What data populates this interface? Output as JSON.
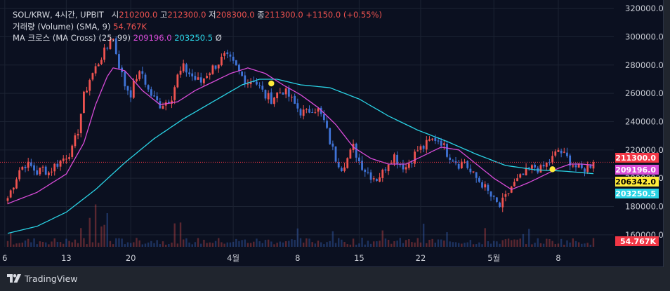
{
  "legend": {
    "symbol": "SOL/KRW, 4시간, UPBIT",
    "open_label": "시",
    "open": "210200.0",
    "high_label": "고",
    "high": "212300.0",
    "low_label": "저",
    "low": "208300.0",
    "close_label": "종",
    "close": "211300.0",
    "change": "+1150.0 (+0.55%)",
    "volume_label": "거래량 (Volume) (SMA, 9)",
    "volume_value": "54.767K",
    "ma_label": "MA 크로스 (MA Cross) (25, 99)",
    "ma_fast_value": "209196.0",
    "ma_slow_value": "203250.5",
    "ma_extra": "Ø"
  },
  "footer": {
    "brand": "TradingView",
    "logo_icon": "tradingview-logo-icon"
  },
  "colors": {
    "background": "#0b1020",
    "up": "#ef5350",
    "down": "#3f73d6",
    "ma_fast": "#d84bd8",
    "ma_slow": "#2ad4e6",
    "cross_marker": "#ffeb3b",
    "yellow_tag": "#ffeb3b"
  },
  "chart_data": {
    "type": "candlestick",
    "x_ticks": [
      "6",
      "13",
      "20",
      "4월",
      "8",
      "15",
      "22",
      "5월",
      "8"
    ],
    "y_ticks": [
      "160000.0",
      "180000.0",
      "200000.0",
      "220000.0",
      "240000.0",
      "260000.0",
      "280000.0",
      "300000.0",
      "320000.0"
    ],
    "ylim": [
      151500,
      326000
    ],
    "price_tags": [
      {
        "label": "211300.0",
        "value": 211300,
        "color": "#f23645"
      },
      {
        "label": "209196.0",
        "value": 209196,
        "color": "#d84bd8"
      },
      {
        "label": "206342.0",
        "value": 206342,
        "color": "#ffeb3b"
      },
      {
        "label": "203250.5",
        "value": 203250.5,
        "color": "#2ad4e6"
      },
      {
        "label": "54.767K",
        "value": 54.767,
        "color": "#f23645"
      }
    ],
    "last_price": 211300,
    "price_keypoints": [
      [
        0,
        186000
      ],
      [
        2,
        196000
      ],
      [
        4,
        206000
      ],
      [
        6,
        210000
      ],
      [
        8,
        208000
      ],
      [
        10,
        204000
      ],
      [
        12,
        207000
      ],
      [
        14,
        204000
      ],
      [
        16,
        209000
      ],
      [
        18,
        212000
      ],
      [
        20,
        216000
      ],
      [
        22,
        220000
      ],
      [
        24,
        234000
      ],
      [
        26,
        258000
      ],
      [
        28,
        270000
      ],
      [
        30,
        278000
      ],
      [
        32,
        286000
      ],
      [
        34,
        292000
      ],
      [
        35,
        300000
      ],
      [
        36,
        298000
      ],
      [
        38,
        280000
      ],
      [
        40,
        266000
      ],
      [
        42,
        260000
      ],
      [
        44,
        272000
      ],
      [
        46,
        274000
      ],
      [
        48,
        262000
      ],
      [
        50,
        256000
      ],
      [
        52,
        252000
      ],
      [
        54,
        254000
      ],
      [
        56,
        258000
      ],
      [
        58,
        272000
      ],
      [
        60,
        278000
      ],
      [
        62,
        274000
      ],
      [
        64,
        270000
      ],
      [
        66,
        268000
      ],
      [
        68,
        274000
      ],
      [
        70,
        278000
      ],
      [
        72,
        282000
      ],
      [
        74,
        286000
      ],
      [
        76,
        283000
      ],
      [
        78,
        278000
      ],
      [
        80,
        272000
      ],
      [
        82,
        268000
      ],
      [
        84,
        270000
      ],
      [
        86,
        264000
      ],
      [
        88,
        258000
      ],
      [
        90,
        256000
      ],
      [
        92,
        260000
      ],
      [
        94,
        262000
      ],
      [
        96,
        258000
      ],
      [
        98,
        252000
      ],
      [
        100,
        247000
      ],
      [
        102,
        246000
      ],
      [
        104,
        250000
      ],
      [
        106,
        248000
      ],
      [
        108,
        240000
      ],
      [
        110,
        226000
      ],
      [
        112,
        214000
      ],
      [
        114,
        208000
      ],
      [
        116,
        214000
      ],
      [
        118,
        222000
      ],
      [
        120,
        212000
      ],
      [
        122,
        206000
      ],
      [
        124,
        202000
      ],
      [
        126,
        200000
      ],
      [
        128,
        204000
      ],
      [
        130,
        212000
      ],
      [
        132,
        216000
      ],
      [
        134,
        210000
      ],
      [
        136,
        208000
      ],
      [
        138,
        214000
      ],
      [
        140,
        220000
      ],
      [
        142,
        222000
      ],
      [
        144,
        226000
      ],
      [
        146,
        228000
      ],
      [
        148,
        226000
      ],
      [
        150,
        218000
      ],
      [
        152,
        214000
      ],
      [
        154,
        210000
      ],
      [
        156,
        212000
      ],
      [
        158,
        204000
      ],
      [
        160,
        200000
      ],
      [
        162,
        196000
      ],
      [
        164,
        190000
      ],
      [
        166,
        184000
      ],
      [
        168,
        180000
      ],
      [
        170,
        186000
      ],
      [
        172,
        194000
      ],
      [
        174,
        198000
      ],
      [
        176,
        202000
      ],
      [
        178,
        206000
      ],
      [
        180,
        208000
      ],
      [
        182,
        206000
      ],
      [
        184,
        210000
      ],
      [
        186,
        214000
      ],
      [
        188,
        220000
      ],
      [
        190,
        216000
      ],
      [
        192,
        212000
      ],
      [
        194,
        208000
      ],
      [
        196,
        206000
      ],
      [
        198,
        208000
      ],
      [
        200,
        211300
      ]
    ],
    "ma_fast_keypoints": [
      [
        0,
        182000
      ],
      [
        10,
        190000
      ],
      [
        20,
        203000
      ],
      [
        26,
        225000
      ],
      [
        30,
        252000
      ],
      [
        34,
        272000
      ],
      [
        36,
        278000
      ],
      [
        40,
        276000
      ],
      [
        46,
        262000
      ],
      [
        52,
        252000
      ],
      [
        58,
        254000
      ],
      [
        64,
        262000
      ],
      [
        70,
        268000
      ],
      [
        76,
        274000
      ],
      [
        82,
        278000
      ],
      [
        88,
        274000
      ],
      [
        94,
        266000
      ],
      [
        100,
        259000
      ],
      [
        106,
        250000
      ],
      [
        112,
        238000
      ],
      [
        118,
        222000
      ],
      [
        124,
        214000
      ],
      [
        130,
        210000
      ],
      [
        136,
        210000
      ],
      [
        142,
        216000
      ],
      [
        148,
        222000
      ],
      [
        154,
        220000
      ],
      [
        160,
        210000
      ],
      [
        166,
        200000
      ],
      [
        172,
        192000
      ],
      [
        178,
        197000
      ],
      [
        184,
        203000
      ],
      [
        188,
        207000
      ],
      [
        192,
        210000
      ],
      [
        196,
        210000
      ],
      [
        200,
        209196
      ]
    ],
    "ma_slow_keypoints": [
      [
        0,
        161000
      ],
      [
        10,
        166000
      ],
      [
        20,
        176000
      ],
      [
        30,
        192000
      ],
      [
        40,
        211000
      ],
      [
        50,
        228000
      ],
      [
        60,
        242000
      ],
      [
        70,
        254000
      ],
      [
        80,
        266000
      ],
      [
        86,
        270000
      ],
      [
        92,
        270000
      ],
      [
        100,
        266000
      ],
      [
        110,
        264000
      ],
      [
        120,
        256000
      ],
      [
        130,
        244000
      ],
      [
        140,
        234000
      ],
      [
        150,
        226000
      ],
      [
        160,
        217000
      ],
      [
        170,
        209000
      ],
      [
        180,
        206000
      ],
      [
        190,
        205000
      ],
      [
        200,
        203250.5
      ]
    ],
    "cross_markers": [
      {
        "bar": 90,
        "value": 267000
      },
      {
        "bar": 186,
        "value": 206342
      }
    ],
    "x_tick_bars": [
      -1,
      20,
      42,
      77,
      99,
      120,
      141,
      166,
      188
    ],
    "n_bars": 201
  }
}
